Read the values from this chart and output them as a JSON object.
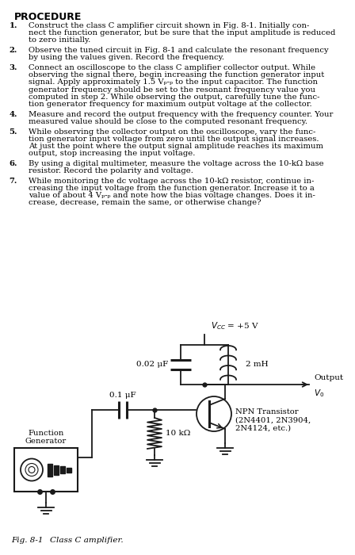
{
  "title": "PROCEDURE",
  "background_color": "#ffffff",
  "text_color": "#000000",
  "fig_label": "Fig. 8-1  Class C amplifier.",
  "vcc_label": "$V_{CC}$ = +5 V",
  "cap_label": "0.02 μF",
  "ind_label": "2 mH",
  "cap2_label": "0.1 μF",
  "res_label": "10 kΩ",
  "output_label1": "Output",
  "output_label2": "$V_0$",
  "npn_label": "NPN Transistor\n(2N4401, 2N3904,\n2N4124, etc.)",
  "fg_label": "Function\nGenerator",
  "page_bg": "#f5f5f5"
}
